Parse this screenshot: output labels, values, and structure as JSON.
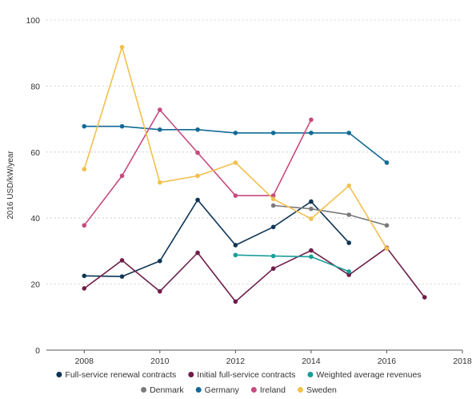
{
  "chart_data": {
    "type": "line",
    "title": "",
    "xlabel": "",
    "ylabel": "2016 USD/kW/year",
    "xlim": [
      2007,
      2018
    ],
    "ylim": [
      0,
      100
    ],
    "x_ticks": [
      "2008",
      "2010",
      "2012",
      "2014",
      "2016",
      "2018"
    ],
    "y_ticks": [
      "0",
      "20",
      "40",
      "60",
      "80",
      "100"
    ],
    "grid": "horizontal dashed",
    "legend_position": "bottom",
    "series": [
      {
        "name": "Full-service renewal contracts",
        "color": "#0f3555",
        "points": [
          [
            2008,
            22.5
          ],
          [
            2009,
            22.3
          ],
          [
            2010,
            27
          ],
          [
            2011,
            45.5
          ],
          [
            2012,
            31.8
          ],
          [
            2013,
            37.3
          ],
          [
            2014,
            45
          ],
          [
            2015,
            32.5
          ]
        ]
      },
      {
        "name": "Initial full-service contracts",
        "color": "#6f1e4a",
        "points": [
          [
            2008,
            18.7
          ],
          [
            2009,
            27.2
          ],
          [
            2010,
            17.8
          ],
          [
            2011,
            29.5
          ],
          [
            2012,
            14.7
          ],
          [
            2013,
            24.7
          ],
          [
            2014,
            30.2
          ],
          [
            2015,
            22.8
          ],
          [
            2016,
            31
          ],
          [
            2017,
            16
          ]
        ]
      },
      {
        "name": "Weighted average revenues",
        "color": "#1a9e9a",
        "points": [
          [
            2012,
            28.8
          ],
          [
            2013,
            28.5
          ],
          [
            2014,
            28.3
          ],
          [
            2015,
            23.8
          ]
        ]
      },
      {
        "name": "Denmark",
        "color": "#7a7a7a",
        "points": [
          [
            2013,
            43.8
          ],
          [
            2014,
            42.8
          ],
          [
            2015,
            41
          ],
          [
            2016,
            37.8
          ]
        ]
      },
      {
        "name": "Germany",
        "color": "#116b96",
        "points": [
          [
            2008,
            67.8
          ],
          [
            2009,
            67.8
          ],
          [
            2010,
            66.8
          ],
          [
            2011,
            66.8
          ],
          [
            2012,
            65.8
          ],
          [
            2013,
            65.8
          ],
          [
            2014,
            65.8
          ],
          [
            2015,
            65.8
          ],
          [
            2016,
            56.8
          ]
        ]
      },
      {
        "name": "Ireland",
        "color": "#c74a80",
        "points": [
          [
            2008,
            37.8
          ],
          [
            2009,
            52.8
          ],
          [
            2010,
            72.8
          ],
          [
            2011,
            59.8
          ],
          [
            2012,
            46.8
          ],
          [
            2013,
            46.8
          ],
          [
            2014,
            69.8
          ]
        ]
      },
      {
        "name": "Sweden",
        "color": "#f2c04e",
        "points": [
          [
            2008,
            54.8
          ],
          [
            2009,
            91.8
          ],
          [
            2010,
            50.8
          ],
          [
            2011,
            52.8
          ],
          [
            2012,
            56.8
          ],
          [
            2013,
            45.8
          ],
          [
            2014,
            39.8
          ],
          [
            2015,
            49.8
          ],
          [
            2016,
            30.8
          ]
        ]
      }
    ]
  }
}
